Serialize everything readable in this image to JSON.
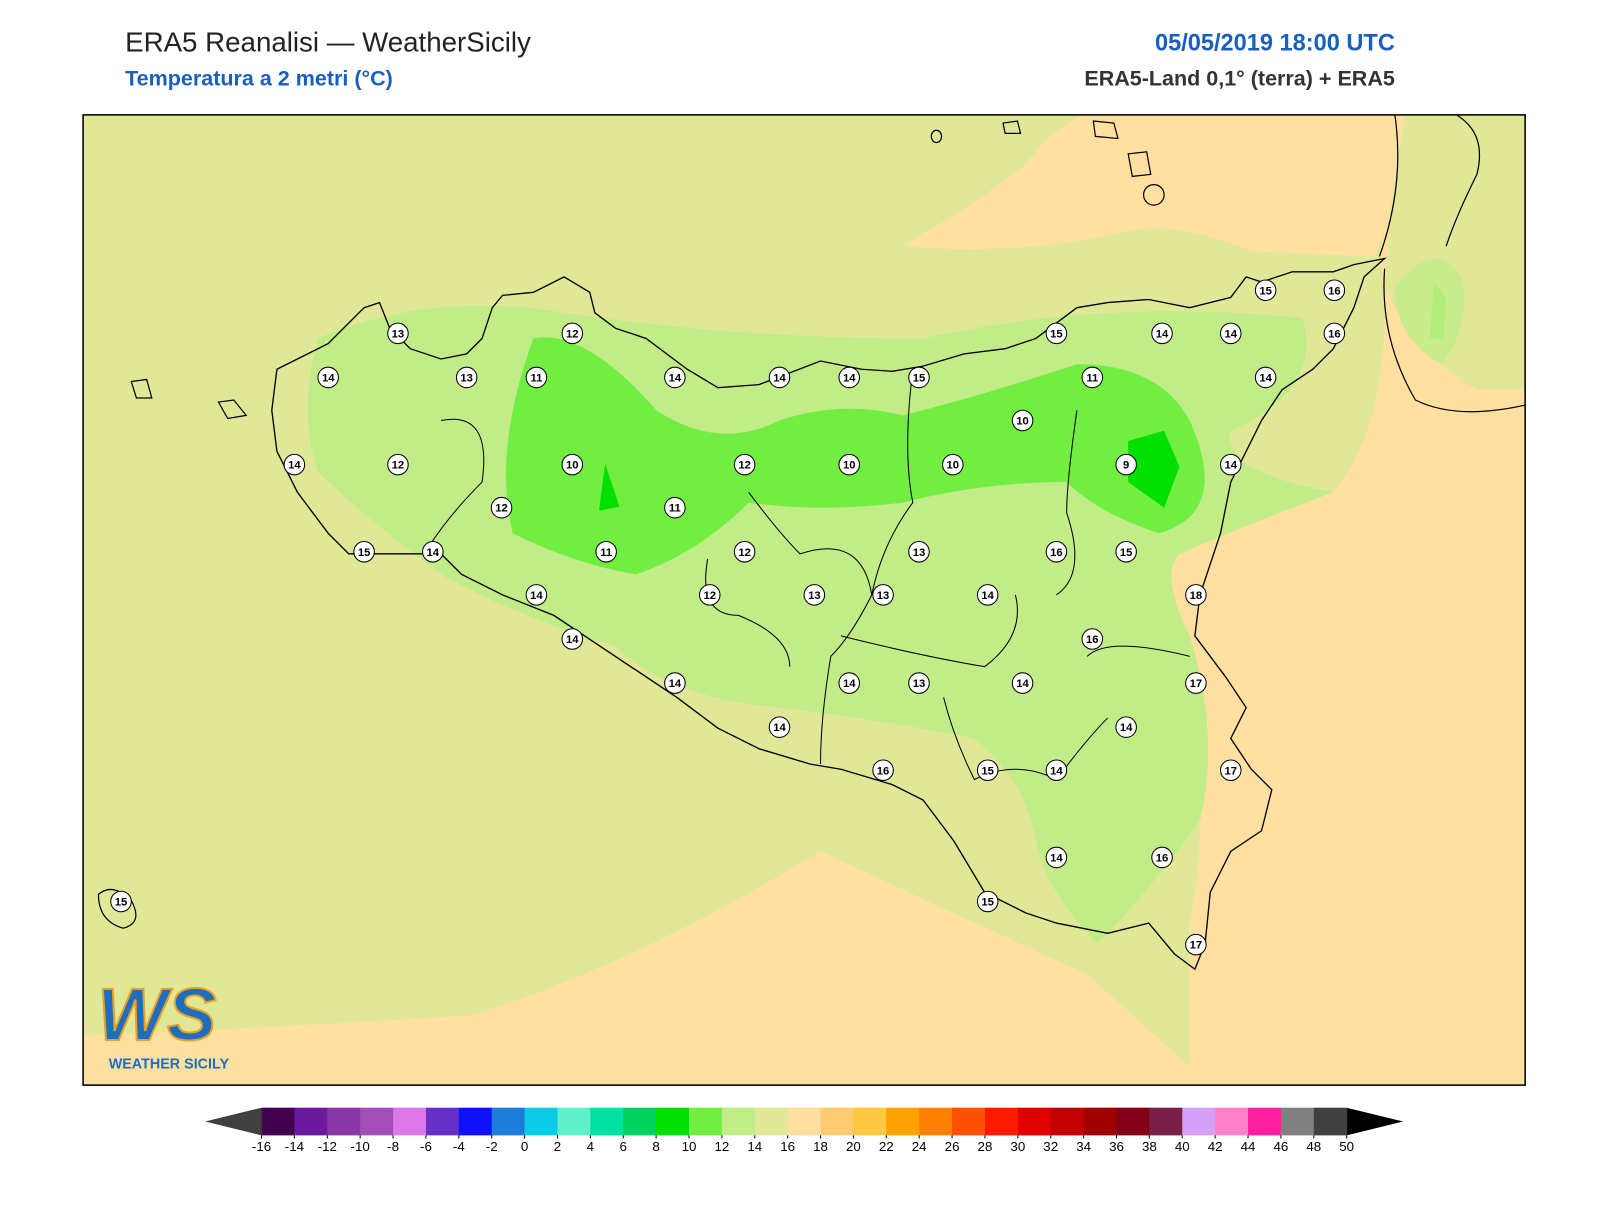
{
  "header": {
    "title": "ERA5 Reanalisi — WeatherSicily",
    "subtitle": "Temperatura a 2 metri (°C)",
    "datetime": "05/05/2019 18:00 UTC",
    "source": "ERA5-Land 0,1° (terra) + ERA5"
  },
  "stations": [
    13,
    14,
    13,
    11,
    12,
    14,
    14,
    14,
    15,
    15,
    14,
    14,
    15,
    16,
    16,
    11,
    14,
    10,
    14,
    12,
    10,
    12,
    10,
    10,
    9,
    14,
    12,
    11,
    15,
    14,
    11,
    12,
    13,
    16,
    15,
    14,
    12,
    13,
    13,
    14,
    18,
    14,
    16,
    14,
    14,
    13,
    14,
    17,
    14,
    14,
    16,
    15,
    14,
    17,
    14,
    16,
    15,
    15,
    17
  ],
  "colorbar": {
    "ticks": [
      -16,
      -14,
      -12,
      -10,
      -8,
      -6,
      -4,
      -2,
      0,
      2,
      4,
      6,
      8,
      10,
      12,
      14,
      16,
      18,
      20,
      22,
      24,
      26,
      28,
      30,
      32,
      34,
      36,
      38,
      40,
      42,
      44,
      46,
      48,
      50
    ],
    "colors": [
      "#42004f",
      "#6a1a9a",
      "#8a38a8",
      "#a24fb8",
      "#dc78e8",
      "#6430c8",
      "#1010ff",
      "#1c7ed8",
      "#0ccbe6",
      "#60f0c8",
      "#00e0a0",
      "#00d060",
      "#00e000",
      "#72ee42",
      "#c2ec88",
      "#e0e898",
      "#ffe0a0",
      "#ffca70",
      "#ffc840",
      "#ffa200",
      "#ff8000",
      "#ff5000",
      "#ff1a00",
      "#e00000",
      "#c40000",
      "#a00000",
      "#820018",
      "#7a2048",
      "#d6a0f8",
      "#ff80c8",
      "#ff20a0",
      "#808080",
      "#404040"
    ],
    "under_color": "#404040",
    "over_color": "#000000"
  },
  "logo": {
    "letters": "WS",
    "name": "WEATHER SICILY"
  }
}
